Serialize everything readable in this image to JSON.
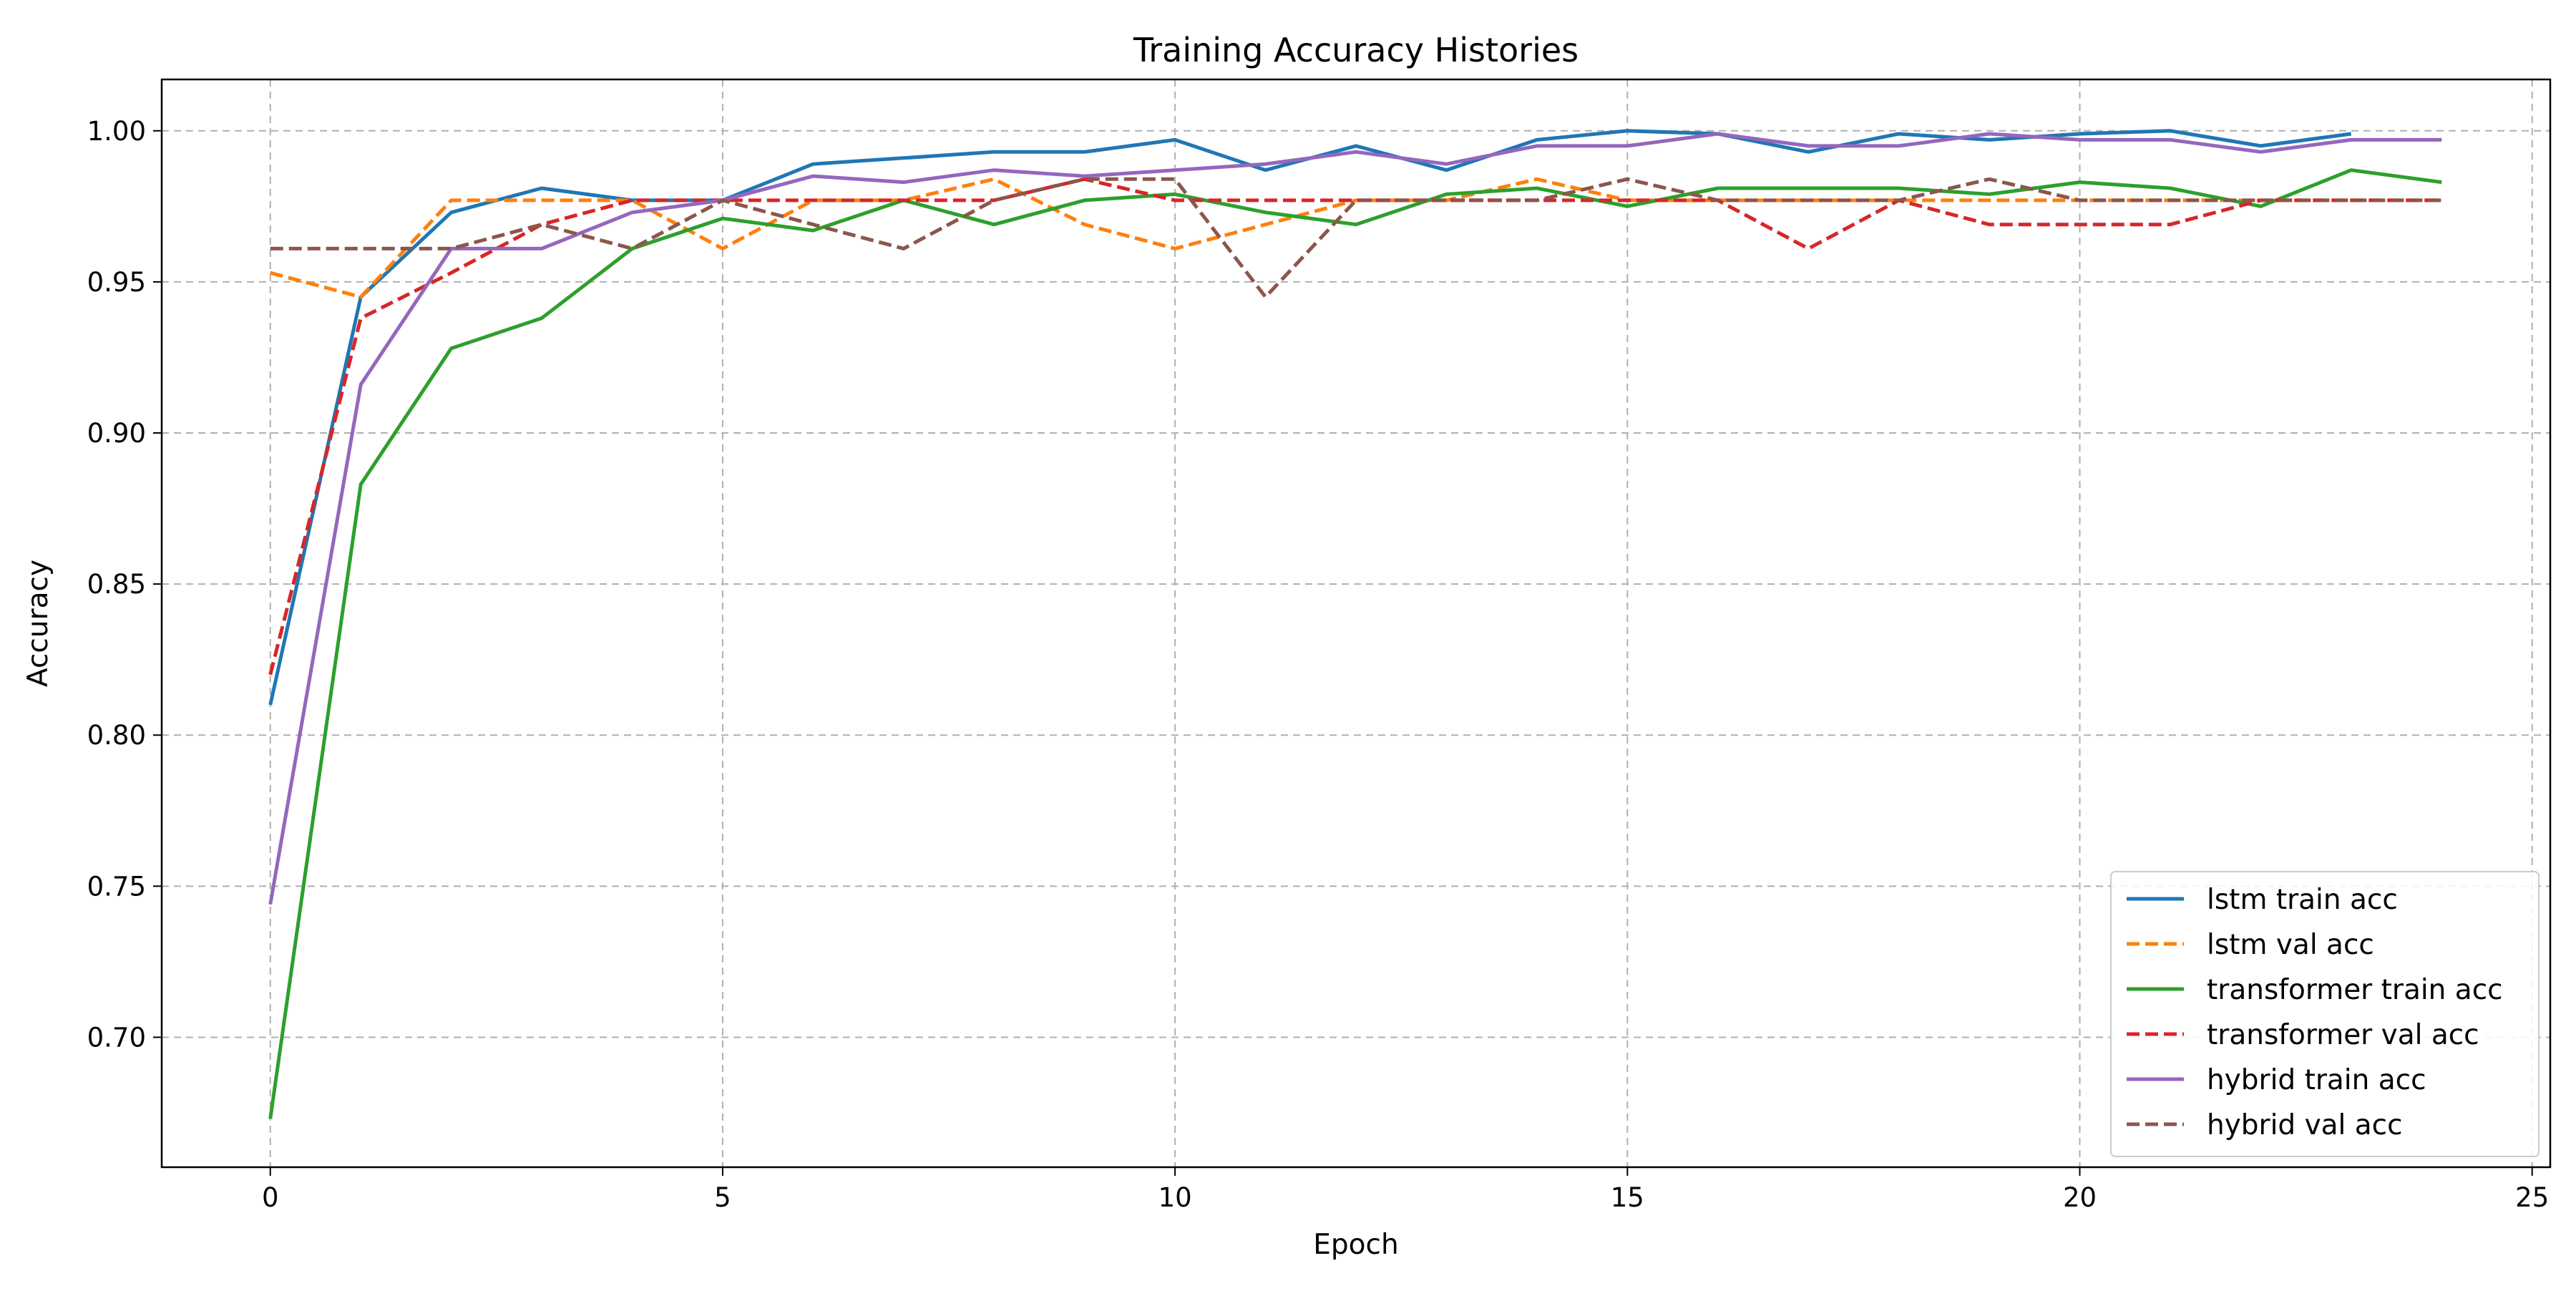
{
  "chart_data": {
    "type": "line",
    "title": "Training Accuracy Histories",
    "xlabel": "Epoch",
    "ylabel": "Accuracy",
    "xlim": [
      -1.2,
      25.2
    ],
    "ylim": [
      0.657,
      1.017
    ],
    "x_ticks": [
      0,
      5,
      10,
      15,
      20,
      25
    ],
    "x_tick_labels": [
      "0",
      "5",
      "10",
      "15",
      "20",
      "25"
    ],
    "y_ticks": [
      0.7,
      0.75,
      0.8,
      0.85,
      0.9,
      0.95,
      1.0
    ],
    "y_tick_labels": [
      "0.70",
      "0.75",
      "0.80",
      "0.85",
      "0.90",
      "0.95",
      "1.00"
    ],
    "grid": true,
    "legend_position": "lower-right",
    "series": [
      {
        "name": "lstm train acc",
        "color": "#1f77b4",
        "dash": "solid",
        "x": [
          0,
          1,
          2,
          3,
          4,
          5,
          6,
          7,
          8,
          9,
          10,
          11,
          12,
          13,
          14,
          15,
          16,
          17,
          18,
          19,
          20,
          21,
          22,
          23
        ],
        "values": [
          0.81,
          0.945,
          0.973,
          0.981,
          0.977,
          0.977,
          0.989,
          0.991,
          0.993,
          0.993,
          0.997,
          0.987,
          0.995,
          0.987,
          0.997,
          1.0,
          0.999,
          0.993,
          0.999,
          0.997,
          0.999,
          1.0,
          0.995,
          0.999
        ]
      },
      {
        "name": "lstm val acc",
        "color": "#ff7f0e",
        "dash": "dashed",
        "x": [
          0,
          1,
          2,
          3,
          4,
          5,
          6,
          7,
          8,
          9,
          10,
          11,
          12,
          13,
          14,
          15,
          16,
          17,
          18,
          19,
          20,
          21,
          22,
          23,
          24
        ],
        "values": [
          0.953,
          0.945,
          0.977,
          0.977,
          0.977,
          0.961,
          0.977,
          0.977,
          0.984,
          0.969,
          0.961,
          0.969,
          0.977,
          0.977,
          0.984,
          0.977,
          0.977,
          0.977,
          0.977,
          0.977,
          0.977,
          0.977,
          0.977,
          0.977,
          0.977
        ]
      },
      {
        "name": "transformer train acc",
        "color": "#2ca02c",
        "dash": "solid",
        "x": [
          0,
          1,
          2,
          3,
          4,
          5,
          6,
          7,
          8,
          9,
          10,
          11,
          12,
          13,
          14,
          15,
          16,
          17,
          18,
          19,
          20,
          21,
          22,
          23,
          24
        ],
        "values": [
          0.673,
          0.883,
          0.928,
          0.938,
          0.961,
          0.971,
          0.967,
          0.977,
          0.969,
          0.977,
          0.979,
          0.973,
          0.969,
          0.979,
          0.981,
          0.975,
          0.981,
          0.981,
          0.981,
          0.979,
          0.983,
          0.981,
          0.975,
          0.987,
          0.983
        ]
      },
      {
        "name": "transformer val acc",
        "color": "#d62728",
        "dash": "dashed",
        "x": [
          0,
          1,
          2,
          3,
          4,
          5,
          6,
          7,
          8,
          9,
          10,
          11,
          12,
          13,
          14,
          15,
          16,
          17,
          18,
          19,
          20,
          21,
          22,
          23,
          24
        ],
        "values": [
          0.82,
          0.938,
          0.953,
          0.969,
          0.977,
          0.977,
          0.977,
          0.977,
          0.977,
          0.984,
          0.977,
          0.977,
          0.977,
          0.977,
          0.977,
          0.977,
          0.977,
          0.961,
          0.977,
          0.969,
          0.969,
          0.969,
          0.977,
          0.977,
          0.977
        ]
      },
      {
        "name": "hybrid train acc",
        "color": "#9467bd",
        "dash": "solid",
        "x": [
          0,
          1,
          2,
          3,
          4,
          5,
          6,
          7,
          8,
          9,
          10,
          11,
          12,
          13,
          14,
          15,
          16,
          17,
          18,
          19,
          20,
          21,
          22,
          23,
          24
        ],
        "values": [
          0.744,
          0.916,
          0.961,
          0.961,
          0.973,
          0.977,
          0.985,
          0.983,
          0.987,
          0.985,
          0.987,
          0.989,
          0.993,
          0.989,
          0.995,
          0.995,
          0.999,
          0.995,
          0.995,
          0.999,
          0.997,
          0.997,
          0.993,
          0.997,
          0.997
        ]
      },
      {
        "name": "hybrid val acc",
        "color": "#8c564b",
        "dash": "dashed",
        "x": [
          0,
          1,
          2,
          3,
          4,
          5,
          6,
          7,
          8,
          9,
          10,
          11,
          12,
          13,
          14,
          15,
          16,
          17,
          18,
          19,
          20,
          21,
          22,
          23,
          24
        ],
        "values": [
          0.961,
          0.961,
          0.961,
          0.969,
          0.961,
          0.977,
          0.969,
          0.961,
          0.977,
          0.984,
          0.984,
          0.945,
          0.977,
          0.977,
          0.977,
          0.984,
          0.977,
          0.977,
          0.977,
          0.984,
          0.977,
          0.977,
          0.977,
          0.977,
          0.977
        ]
      }
    ]
  }
}
